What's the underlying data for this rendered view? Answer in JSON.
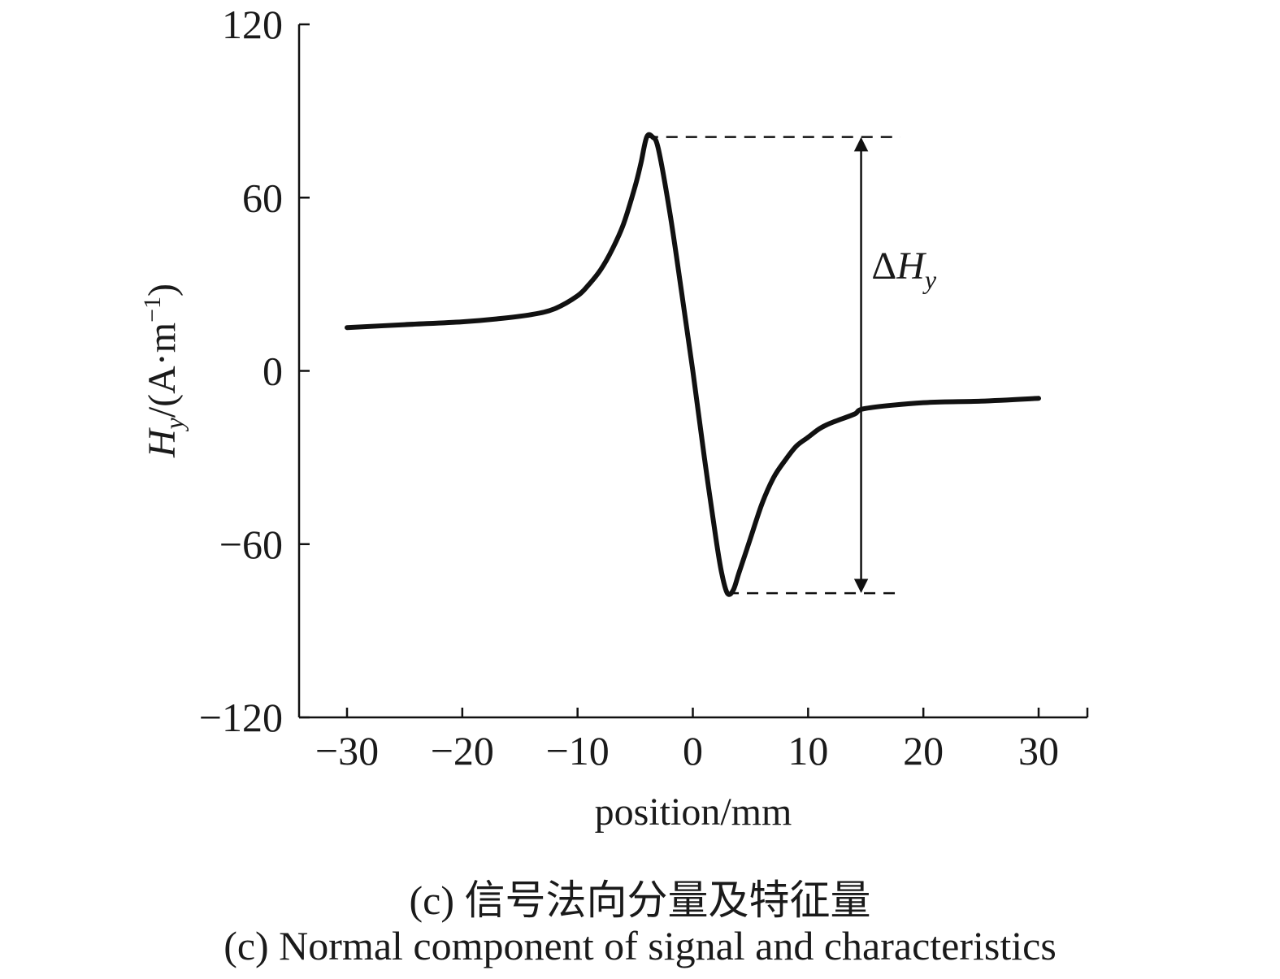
{
  "chart_data": {
    "type": "line",
    "xlabel": "position/mm",
    "ylabel": {
      "symbol": "H",
      "subscript": "y",
      "unit": "/(A·m",
      "unit_exp": "−1",
      "unit_close": ")"
    },
    "xlim": [
      -34,
      34
    ],
    "ylim": [
      -120,
      120
    ],
    "xticks": [
      -30,
      -20,
      -10,
      0,
      10,
      20,
      30
    ],
    "xtick_labels": [
      "−30",
      "−20",
      "−10",
      "0",
      "10",
      "20",
      "30"
    ],
    "yticks": [
      120,
      60,
      0,
      -60,
      -120
    ],
    "ytick_labels": [
      "120",
      "60",
      "0",
      "−60",
      "−120"
    ],
    "grid": false,
    "series": [
      {
        "color": "#111111",
        "x": [
          -30,
          -25,
          -20,
          -17,
          -14,
          -12,
          -10,
          -9,
          -8,
          -7,
          -6,
          -5,
          -4.5,
          -4,
          -3.5,
          -3,
          -2,
          -1,
          0,
          1,
          2,
          2.5,
          3,
          3.5,
          4,
          5,
          6,
          7,
          8,
          9,
          10,
          11,
          12,
          14,
          15,
          20,
          25,
          30
        ],
        "y": [
          15,
          16,
          17,
          18,
          19.5,
          21.5,
          26,
          30,
          35,
          42,
          51,
          64,
          72,
          81,
          81,
          77,
          55,
          28,
          0,
          -30,
          -58,
          -70,
          -77,
          -76,
          -70,
          -58,
          -46,
          -37,
          -31,
          -26,
          -23,
          -20,
          -18,
          -15,
          -13,
          -11,
          -10.5,
          -9.5
        ]
      }
    ],
    "annotations": [
      {
        "type": "dashed-hline",
        "y": 81,
        "x_from": -4,
        "x_to": 18
      },
      {
        "type": "dashed-hline",
        "y": -77,
        "x_from": 3,
        "x_to": 18
      },
      {
        "type": "double-arrow",
        "x": 14.6,
        "y_from": 81,
        "y_to": -77
      },
      {
        "type": "label",
        "symbol": "ΔH",
        "subscript": "y",
        "x": 15.5,
        "y": 32
      }
    ]
  },
  "caption": {
    "cn": "(c) 信号法向分量及特征量",
    "en": "(c) Normal component of signal and characteristics"
  }
}
